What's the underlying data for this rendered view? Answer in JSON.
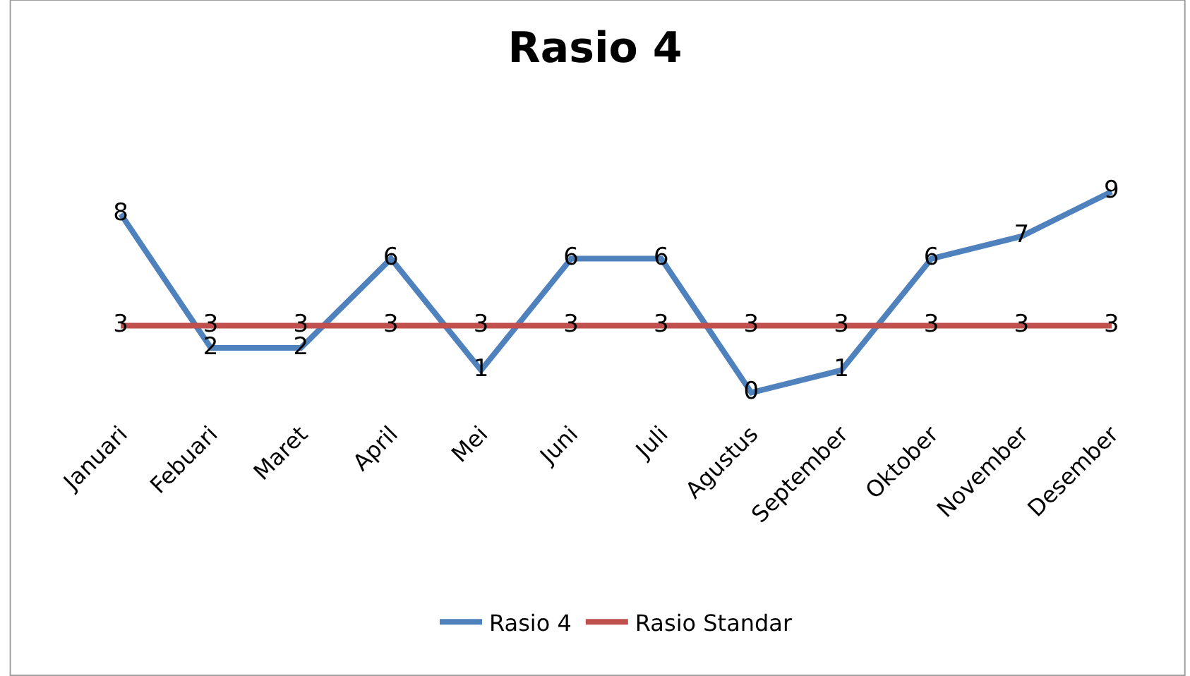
{
  "chart_data": {
    "type": "line",
    "title": "Rasio 4",
    "data_labels": true,
    "legend": "bottom",
    "marker": "none",
    "line_style": "solid",
    "categories": [
      "Januari",
      "Febuari",
      "Maret",
      "April",
      "Mei",
      "Juni",
      "Juli",
      "Agustus",
      "September",
      "Oktober",
      "November",
      "Desember"
    ],
    "series": [
      {
        "name": "Rasio 4",
        "color": "#4f81bd",
        "values": [
          8,
          2,
          2,
          6,
          1,
          6,
          6,
          0,
          1,
          6,
          7,
          9
        ]
      },
      {
        "name": "Rasio Standar",
        "color": "#c0504d",
        "values": [
          3,
          3,
          3,
          3,
          3,
          3,
          3,
          3,
          3,
          3,
          3,
          3
        ]
      }
    ]
  }
}
